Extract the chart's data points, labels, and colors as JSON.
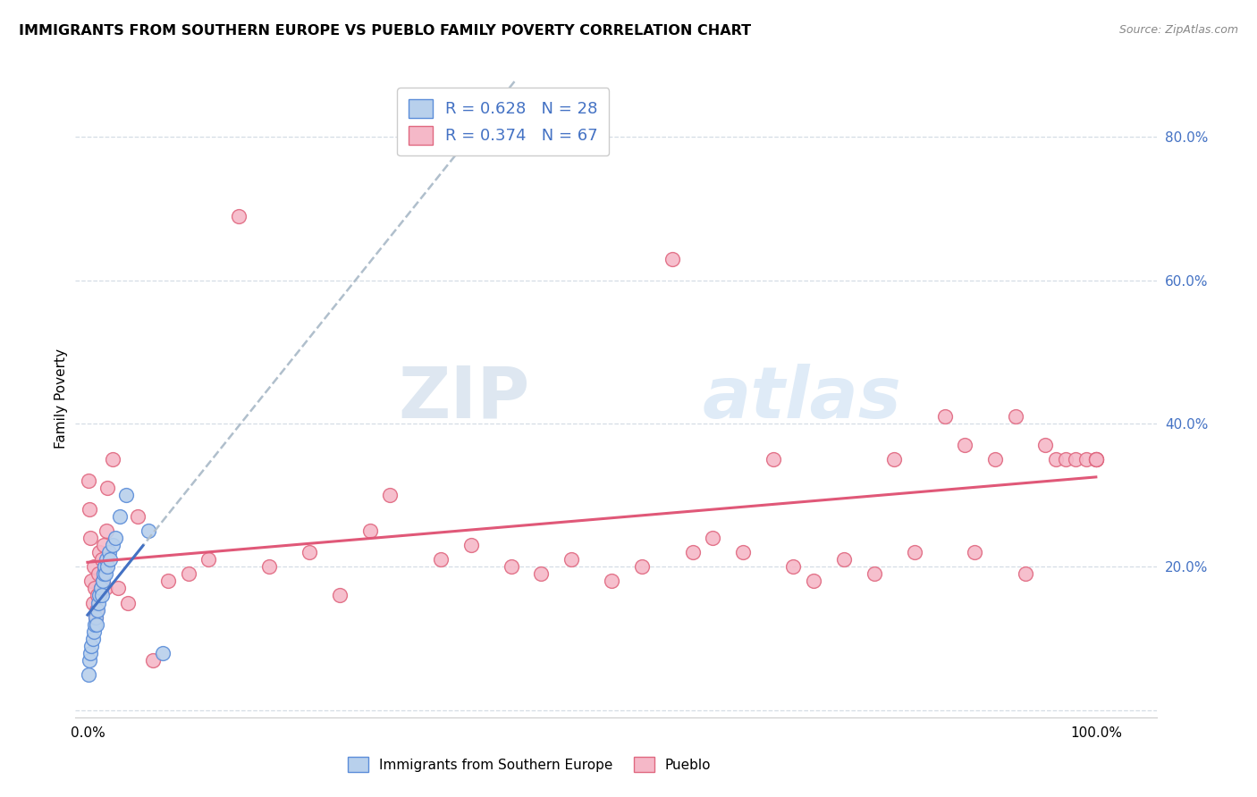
{
  "title": "IMMIGRANTS FROM SOUTHERN EUROPE VS PUEBLO FAMILY POVERTY CORRELATION CHART",
  "source": "Source: ZipAtlas.com",
  "ylabel": "Family Poverty",
  "blue_R": 0.628,
  "blue_N": 28,
  "pink_R": 0.374,
  "pink_N": 67,
  "blue_fill": "#b8d0ec",
  "blue_edge": "#5b8dd9",
  "pink_fill": "#f5b8c8",
  "pink_edge": "#e06880",
  "blue_line": "#4472c4",
  "pink_line": "#e05878",
  "dashed_line": "#b0bfcc",
  "legend_label_blue": "Immigrants from Southern Europe",
  "legend_label_pink": "Pueblo",
  "watermark_zip": "ZIP",
  "watermark_atlas": "atlas",
  "bg_color": "#ffffff",
  "blue_points_x": [
    0.001,
    0.002,
    0.003,
    0.004,
    0.005,
    0.006,
    0.007,
    0.008,
    0.009,
    0.01,
    0.011,
    0.012,
    0.013,
    0.014,
    0.015,
    0.016,
    0.017,
    0.018,
    0.019,
    0.02,
    0.021,
    0.022,
    0.025,
    0.028,
    0.032,
    0.038,
    0.06,
    0.075
  ],
  "blue_points_y": [
    0.05,
    0.07,
    0.08,
    0.09,
    0.1,
    0.11,
    0.12,
    0.13,
    0.12,
    0.14,
    0.15,
    0.16,
    0.17,
    0.16,
    0.18,
    0.19,
    0.2,
    0.19,
    0.21,
    0.2,
    0.22,
    0.21,
    0.23,
    0.24,
    0.27,
    0.3,
    0.25,
    0.08
  ],
  "pink_points_x": [
    0.001,
    0.002,
    0.003,
    0.004,
    0.005,
    0.006,
    0.007,
    0.008,
    0.009,
    0.01,
    0.011,
    0.012,
    0.013,
    0.014,
    0.015,
    0.016,
    0.017,
    0.018,
    0.019,
    0.02,
    0.025,
    0.03,
    0.04,
    0.05,
    0.065,
    0.08,
    0.1,
    0.12,
    0.15,
    0.18,
    0.22,
    0.25,
    0.28,
    0.3,
    0.35,
    0.38,
    0.42,
    0.45,
    0.48,
    0.52,
    0.55,
    0.58,
    0.6,
    0.62,
    0.65,
    0.68,
    0.7,
    0.72,
    0.75,
    0.78,
    0.8,
    0.82,
    0.85,
    0.87,
    0.88,
    0.9,
    0.92,
    0.93,
    0.95,
    0.96,
    0.97,
    0.98,
    0.99,
    1.0,
    1.0,
    1.0,
    1.0
  ],
  "pink_points_y": [
    0.32,
    0.28,
    0.24,
    0.18,
    0.15,
    0.2,
    0.17,
    0.13,
    0.14,
    0.16,
    0.19,
    0.22,
    0.17,
    0.21,
    0.18,
    0.23,
    0.2,
    0.17,
    0.25,
    0.31,
    0.35,
    0.17,
    0.15,
    0.27,
    0.07,
    0.18,
    0.19,
    0.21,
    0.69,
    0.2,
    0.22,
    0.16,
    0.25,
    0.3,
    0.21,
    0.23,
    0.2,
    0.19,
    0.21,
    0.18,
    0.2,
    0.63,
    0.22,
    0.24,
    0.22,
    0.35,
    0.2,
    0.18,
    0.21,
    0.19,
    0.35,
    0.22,
    0.41,
    0.37,
    0.22,
    0.35,
    0.41,
    0.19,
    0.37,
    0.35,
    0.35,
    0.35,
    0.35,
    0.35,
    0.35,
    0.35,
    0.35
  ]
}
